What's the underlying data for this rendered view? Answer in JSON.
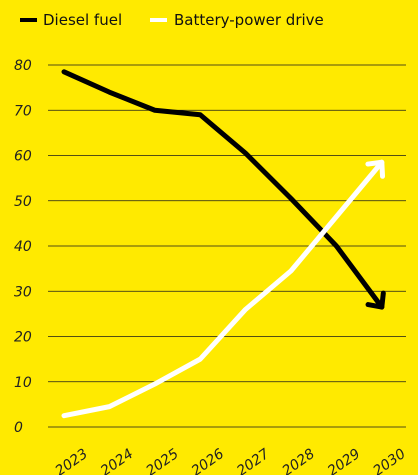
{
  "chart_data": {
    "type": "line",
    "x": [
      "2023",
      "2024",
      "2025",
      "2026",
      "2027",
      "2028",
      "2029",
      "2030"
    ],
    "ylim": [
      0,
      80
    ],
    "yticks": [
      0,
      10,
      20,
      30,
      40,
      50,
      60,
      70,
      80
    ],
    "grid": true,
    "legend_placement": "top-left",
    "series": [
      {
        "name": "Diesel fuel",
        "color": "#000000",
        "values": [
          78.5,
          74,
          70,
          69,
          60.5,
          50.5,
          40,
          26.5
        ]
      },
      {
        "name": "Battery-power drive",
        "color": "#FFFFFF",
        "values": [
          2.5,
          4.5,
          9.5,
          15,
          26,
          34.5,
          46.5,
          58.5
        ]
      }
    ],
    "title": "",
    "xlabel": "",
    "ylabel": ""
  },
  "colors": {
    "background": "#FFEA00",
    "gridline": "#1A1A1A",
    "text": "#222222"
  }
}
